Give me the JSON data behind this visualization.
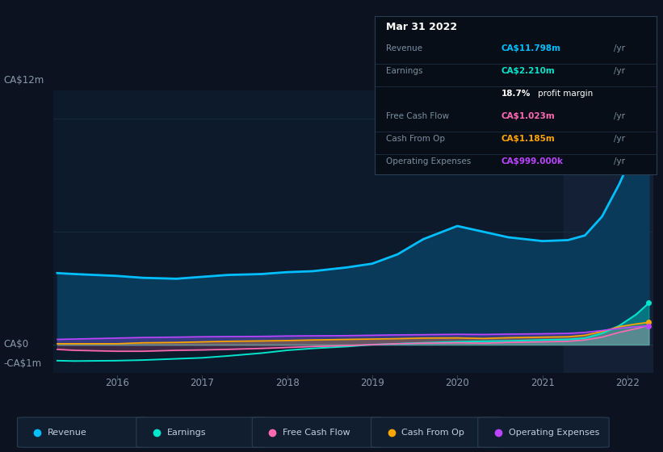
{
  "bg_color": "#0c1220",
  "chart_bg": "#0d1a2b",
  "ylabel_top": "CA$12m",
  "ylabel_zero": "CA$0",
  "ylabel_neg": "-CA$1m",
  "x_years": [
    2015.3,
    2015.5,
    2016.0,
    2016.3,
    2016.7,
    2017.0,
    2017.3,
    2017.7,
    2018.0,
    2018.3,
    2018.7,
    2019.0,
    2019.3,
    2019.6,
    2020.0,
    2020.3,
    2020.6,
    2021.0,
    2021.3,
    2021.5,
    2021.7,
    2021.9,
    2022.1,
    2022.25
  ],
  "revenue": [
    3.8,
    3.75,
    3.65,
    3.55,
    3.5,
    3.6,
    3.7,
    3.75,
    3.85,
    3.9,
    4.1,
    4.3,
    4.8,
    5.6,
    6.3,
    6.0,
    5.7,
    5.5,
    5.55,
    5.8,
    6.8,
    8.5,
    10.5,
    11.798
  ],
  "earnings": [
    -0.85,
    -0.87,
    -0.85,
    -0.82,
    -0.75,
    -0.7,
    -0.6,
    -0.45,
    -0.3,
    -0.2,
    -0.1,
    0.0,
    0.05,
    0.1,
    0.15,
    0.18,
    0.2,
    0.25,
    0.28,
    0.35,
    0.6,
    1.0,
    1.6,
    2.21
  ],
  "free_cash_flow": [
    -0.25,
    -0.3,
    -0.35,
    -0.35,
    -0.3,
    -0.28,
    -0.25,
    -0.2,
    -0.15,
    -0.1,
    -0.05,
    0.0,
    0.05,
    0.08,
    0.1,
    0.08,
    0.12,
    0.15,
    0.18,
    0.25,
    0.4,
    0.65,
    0.85,
    1.023
  ],
  "cash_from_op": [
    0.05,
    0.05,
    0.05,
    0.1,
    0.12,
    0.15,
    0.18,
    0.2,
    0.22,
    0.25,
    0.28,
    0.3,
    0.32,
    0.35,
    0.36,
    0.33,
    0.37,
    0.4,
    0.42,
    0.5,
    0.7,
    0.95,
    1.1,
    1.185
  ],
  "operating_expenses": [
    0.28,
    0.3,
    0.35,
    0.38,
    0.4,
    0.42,
    0.43,
    0.44,
    0.46,
    0.47,
    0.48,
    0.5,
    0.52,
    0.53,
    0.55,
    0.54,
    0.56,
    0.58,
    0.6,
    0.65,
    0.75,
    0.87,
    0.95,
    0.999
  ],
  "revenue_color": "#00bfff",
  "earnings_color": "#00e5cc",
  "fcf_color": "#ff69b4",
  "cashop_color": "#ffa500",
  "opex_color": "#bb44ff",
  "legend_items": [
    "Revenue",
    "Earnings",
    "Free Cash Flow",
    "Cash From Op",
    "Operating Expenses"
  ],
  "legend_colors": [
    "#00bfff",
    "#00e5cc",
    "#ff69b4",
    "#ffa500",
    "#bb44ff"
  ],
  "tooltip_title": "Mar 31 2022",
  "highlight_x_start": 2021.25,
  "highlight_x_end": 2022.3,
  "ylim": [
    -1.5,
    13.5
  ],
  "xlim_start": 2015.25,
  "xlim_end": 2022.3,
  "year_ticks": [
    2016,
    2017,
    2018,
    2019,
    2020,
    2021,
    2022
  ]
}
